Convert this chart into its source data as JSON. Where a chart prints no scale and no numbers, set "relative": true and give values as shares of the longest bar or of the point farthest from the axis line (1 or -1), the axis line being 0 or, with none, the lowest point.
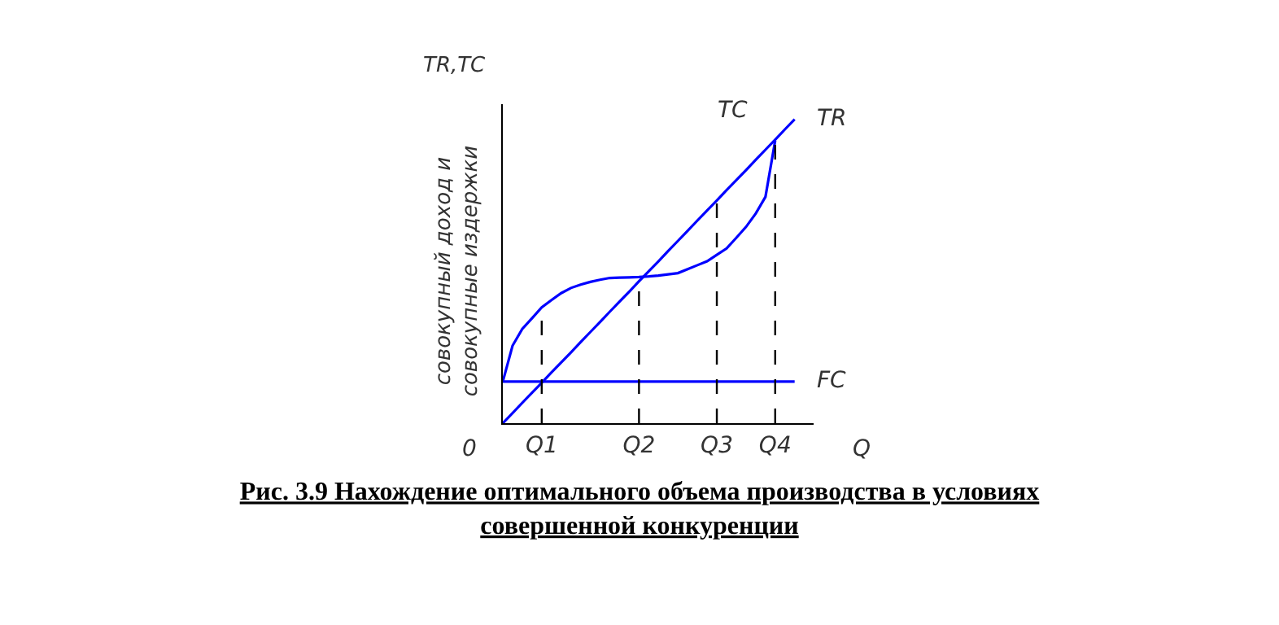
{
  "chart_data": {
    "type": "line",
    "relative": true,
    "title": "Рис. 3.9 Нахождение оптимального объема производства в условиях совершенной конкуренции",
    "ylabel": "совокупный доход и совокупные издержки",
    "xlabel": "Q",
    "annotations": [
      "TR,TC",
      "0"
    ],
    "categories": [
      null,
      null,
      null,
      null,
      "Q1",
      null,
      null,
      null,
      null,
      null,
      null,
      null,
      null,
      null,
      "Q2",
      null,
      null,
      null,
      null,
      null,
      null,
      null,
      "Q3",
      null,
      null,
      null,
      null,
      null,
      "Q4",
      null,
      null
    ],
    "legend": false,
    "marker": "none",
    "ref_lines": [
      {
        "axis": "x",
        "value": "Q1",
        "color": "#000000",
        "line_style": "dashed"
      },
      {
        "axis": "x",
        "value": "Q2",
        "color": "#000000",
        "line_style": "dashed"
      },
      {
        "axis": "x",
        "value": "Q3",
        "color": "#000000",
        "line_style": "dashed"
      },
      {
        "axis": "x",
        "value": "Q4",
        "color": "#000000",
        "line_style": "dashed"
      }
    ],
    "series": [
      {
        "name": "TC",
        "color": "#0000ff",
        "values": [
          0.137,
          0.255,
          0.31,
          0.345,
          0.381,
          0.405,
          0.428,
          0.445,
          0.456,
          0.465,
          0.472,
          0.478,
          0.479,
          0.48,
          0.481,
          0.483,
          0.486,
          0.49,
          0.494,
          0.507,
          0.52,
          0.533,
          0.554,
          0.575,
          0.61,
          0.646,
          0.69,
          0.745,
          0.93,
          null,
          null
        ]
      },
      {
        "name": "TR",
        "color": "#0000ff",
        "values": [
          0,
          0.033,
          0.067,
          0.1,
          0.133,
          0.167,
          0.2,
          0.233,
          0.267,
          0.3,
          0.333,
          0.367,
          0.4,
          0.433,
          0.467,
          0.5,
          0.533,
          0.567,
          0.6,
          0.633,
          0.667,
          0.7,
          0.733,
          0.767,
          0.8,
          0.833,
          0.867,
          0.9,
          0.933,
          0.967,
          1.0
        ]
      },
      {
        "name": "FC",
        "color": "#0000ff",
        "values": [
          0.137,
          0.137,
          0.137,
          0.137,
          0.137,
          0.137,
          0.137,
          0.137,
          0.137,
          0.137,
          0.137,
          0.137,
          0.137,
          0.137,
          0.137,
          0.137,
          0.137,
          0.137,
          0.137,
          0.137,
          0.137,
          0.137,
          0.137,
          0.137,
          0.137,
          0.137,
          0.137,
          0.137,
          0.137,
          0.137,
          0.137
        ]
      }
    ]
  }
}
